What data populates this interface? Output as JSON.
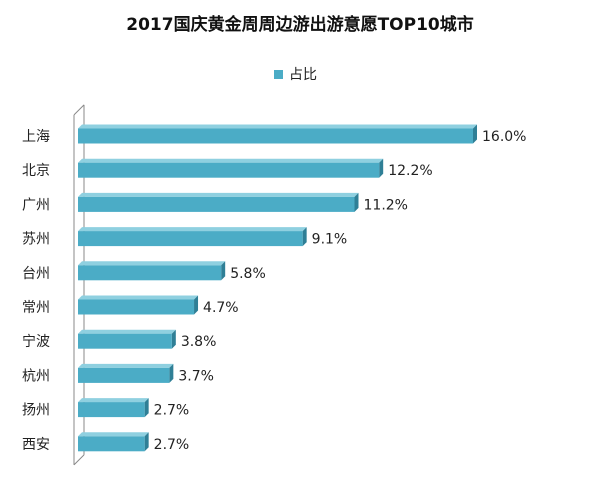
{
  "chart_data": {
    "type": "bar",
    "orientation": "horizontal",
    "title": "2017国庆黄金周周边游出游意愿TOP10城市",
    "xlabel": "",
    "ylabel": "",
    "categories": [
      "上海",
      "北京",
      "广州",
      "苏州",
      "台州",
      "常州",
      "宁波",
      "杭州",
      "扬州",
      "西安"
    ],
    "series": [
      {
        "name": "占比",
        "values": [
          16.0,
          12.2,
          11.2,
          9.1,
          5.8,
          4.7,
          3.8,
          3.7,
          2.7,
          2.7
        ],
        "labels": [
          "16.0%",
          "12.2%",
          "11.2%",
          "9.1%",
          "5.8%",
          "4.7%",
          "3.8%",
          "3.7%",
          "2.7%",
          "2.7%"
        ]
      }
    ],
    "xlim": [
      0,
      16.0
    ],
    "value_unit": "%",
    "grid": false,
    "legend_position": "top",
    "colors": {
      "bar_face": "#4bacc6",
      "bar_top": "#8fd0e0",
      "bar_end": "#2f7f96",
      "axis": "#888888",
      "text": "#222222"
    }
  }
}
